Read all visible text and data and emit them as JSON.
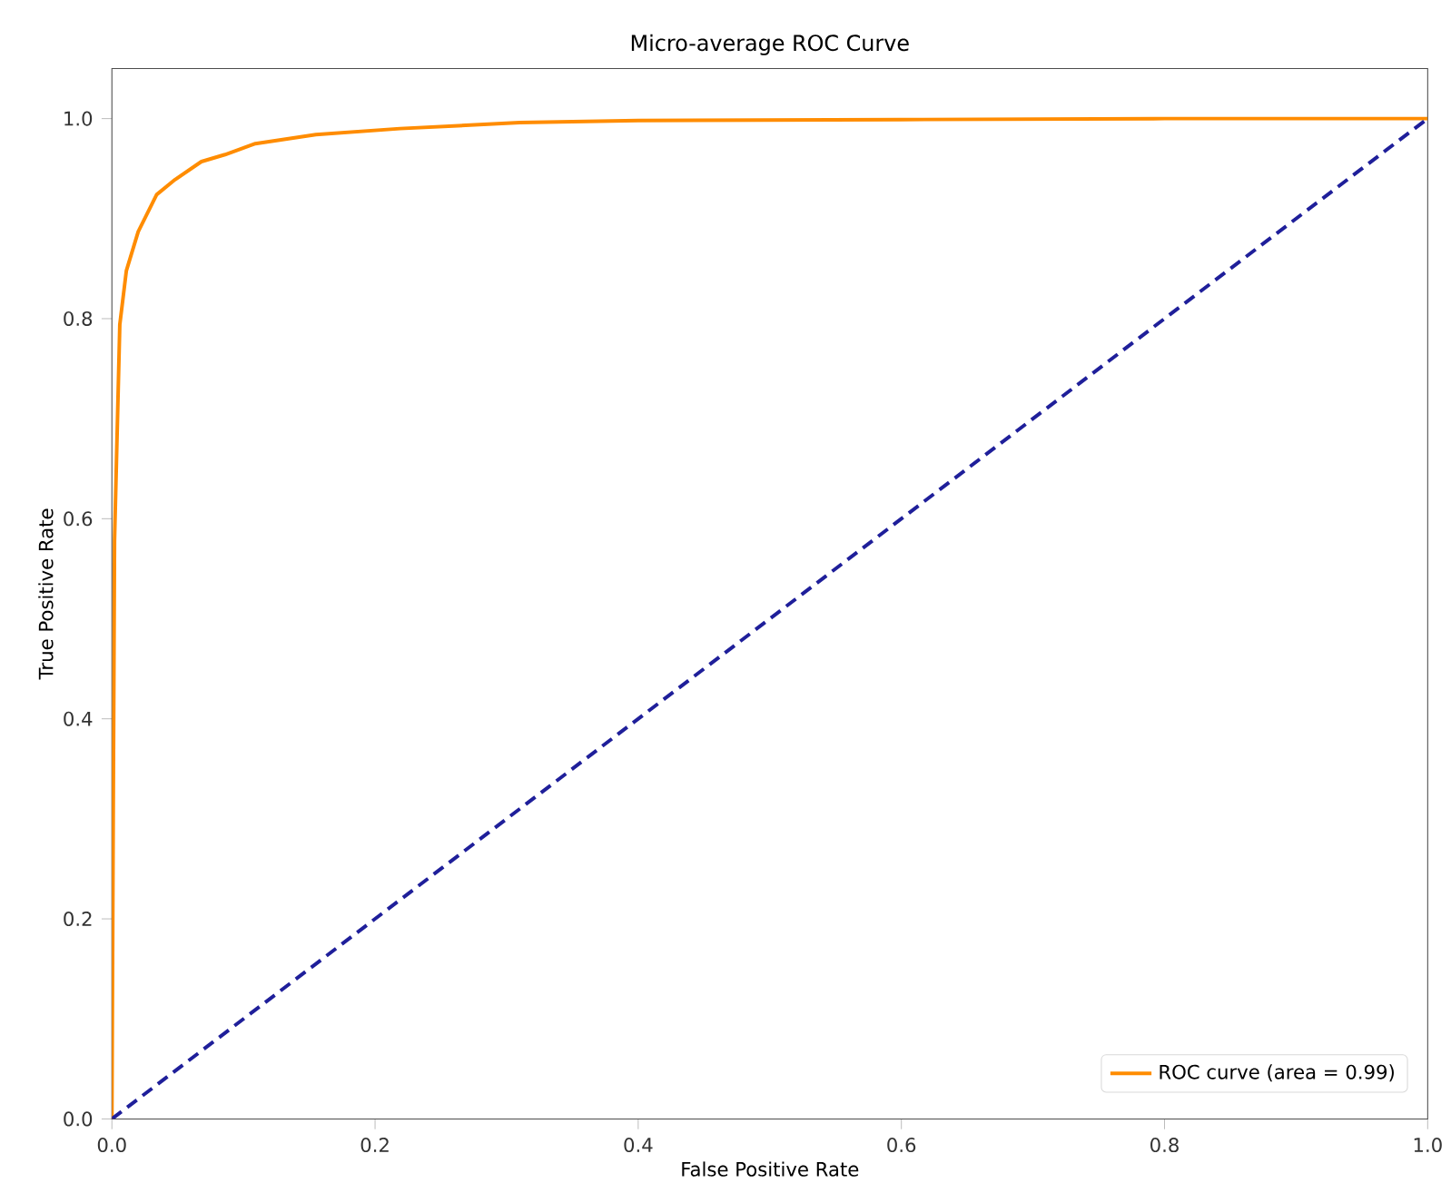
{
  "chart_data": {
    "type": "line",
    "title": "Micro-average ROC Curve",
    "xlabel": "False Positive Rate",
    "ylabel": "True Positive Rate",
    "xlim": [
      0,
      1
    ],
    "ylim": [
      0,
      1.05
    ],
    "xticks": [
      {
        "value": 0,
        "label": "0.0"
      },
      {
        "value": 0.2,
        "label": "0.2"
      },
      {
        "value": 0.4,
        "label": "0.4"
      },
      {
        "value": 0.6,
        "label": "0.6"
      },
      {
        "value": 0.8,
        "label": "0.8"
      },
      {
        "value": 1,
        "label": "1.0"
      }
    ],
    "yticks": [
      {
        "value": 0,
        "label": "0.0"
      },
      {
        "value": 0.2,
        "label": "0.2"
      },
      {
        "value": 0.4,
        "label": "0.4"
      },
      {
        "value": 0.6,
        "label": "0.6"
      },
      {
        "value": 0.8,
        "label": "0.8"
      },
      {
        "value": 1,
        "label": "1.0"
      }
    ],
    "grid": false,
    "legend": "bottom right",
    "series": [
      {
        "name": "ROC curve (area = 0.99)",
        "color": "#ff8c00",
        "line_style": "solid",
        "x": [
          0,
          0.001,
          0.002,
          0.006,
          0.011,
          0.02,
          0.034,
          0.048,
          0.068,
          0.086,
          0.109,
          0.155,
          0.219,
          0.31,
          0.4,
          0.6,
          0.8,
          1
        ],
        "values": [
          0,
          0.3,
          0.578,
          0.794,
          0.848,
          0.887,
          0.924,
          0.939,
          0.957,
          0.964,
          0.975,
          0.984,
          0.99,
          0.996,
          0.998,
          0.999,
          1,
          1
        ]
      },
      {
        "color": "#1f1f9a",
        "line_style": "dashed",
        "x": [
          0,
          1
        ],
        "values": [
          0,
          1
        ]
      }
    ]
  }
}
